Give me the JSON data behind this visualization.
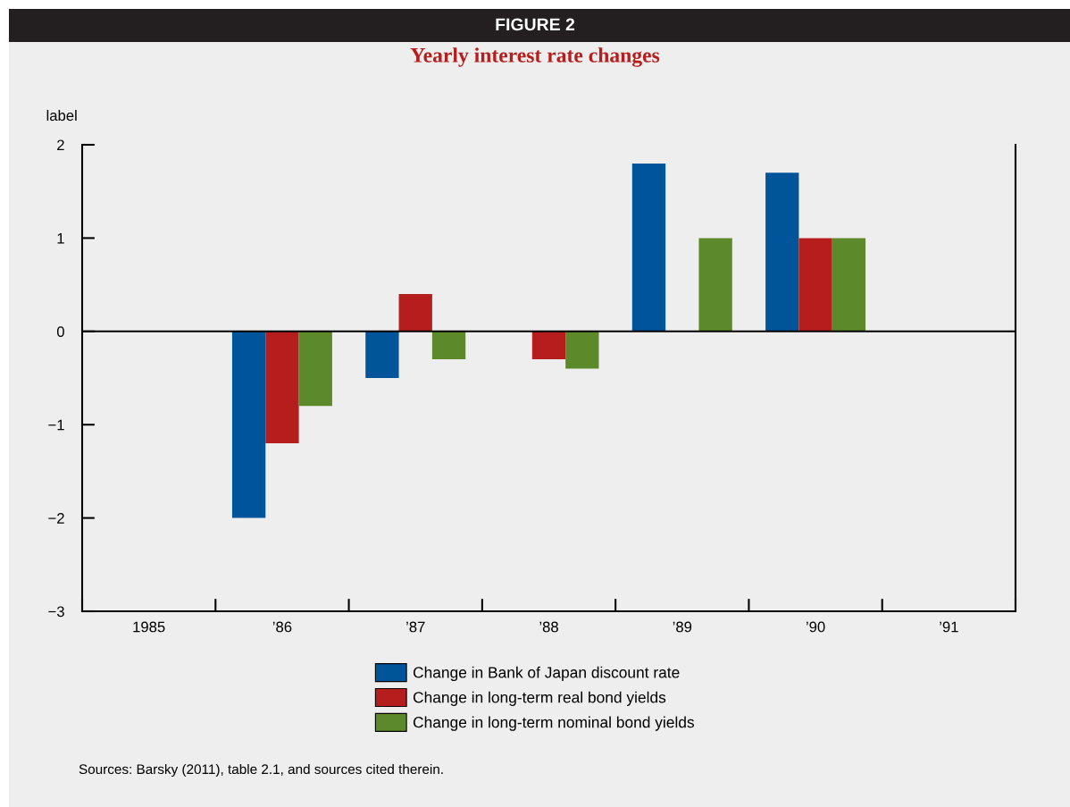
{
  "chart_data": {
    "type": "bar",
    "title": "FIGURE 2",
    "subtitle": "Yearly interest rate changes",
    "ylabel": "label",
    "categories": [
      "1985",
      "’86",
      "’87",
      "’88",
      "’89",
      "’90",
      "’91"
    ],
    "series": [
      {
        "name": "Change in Bank of Japan discount rate",
        "color": "#00559a",
        "values": [
          null,
          -2.0,
          -0.5,
          null,
          1.8,
          1.7,
          null
        ]
      },
      {
        "name": "Change in long-term real bond yields",
        "color": "#b51e1c",
        "values": [
          null,
          -1.2,
          0.4,
          -0.3,
          null,
          1.0,
          null
        ]
      },
      {
        "name": "Change in long-term nominal bond yields",
        "color": "#5c8a2a",
        "values": [
          null,
          -0.8,
          -0.3,
          -0.4,
          1.0,
          1.0,
          null
        ]
      }
    ],
    "ylim": [
      -3,
      2
    ],
    "yticks": [
      {
        "value": -3,
        "label": "−3"
      },
      {
        "value": -2,
        "label": "−2"
      },
      {
        "value": -1,
        "label": "−1"
      },
      0,
      1,
      2
    ],
    "ref_lines": [
      {
        "axis": "y",
        "value": 0,
        "color": "#000000"
      }
    ],
    "grid": false,
    "legend": "bottom",
    "annotations": [
      "Sources: Barsky (2011), table 2.1, and sources cited therein."
    ]
  }
}
